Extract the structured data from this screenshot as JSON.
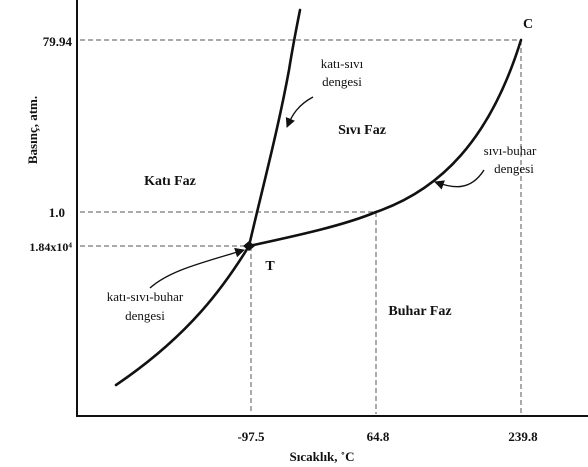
{
  "axes": {
    "xlabel": "Sıcaklık, ˚C",
    "ylabel": "Basınç, atm."
  },
  "x_ticks": [
    "-97.5",
    "64.8",
    "239.8"
  ],
  "y_ticks": [
    "79.94",
    "1.0",
    "1.84x10⁴"
  ],
  "regions": {
    "solid": "Katı Faz",
    "liquid": "Sıvı Faz",
    "vapor": "Buhar Faz"
  },
  "curve_labels": {
    "solid_liquid_line1": "katı-sıvı",
    "solid_liquid_line2": "dengesi",
    "liquid_vapor_line1": "sıvı-buhar",
    "liquid_vapor_line2": "dengesi",
    "triple_line1": "katı-sıvı-buhar",
    "triple_line2": "dengesi"
  },
  "points": {
    "triple": "T",
    "critical": "C"
  }
}
